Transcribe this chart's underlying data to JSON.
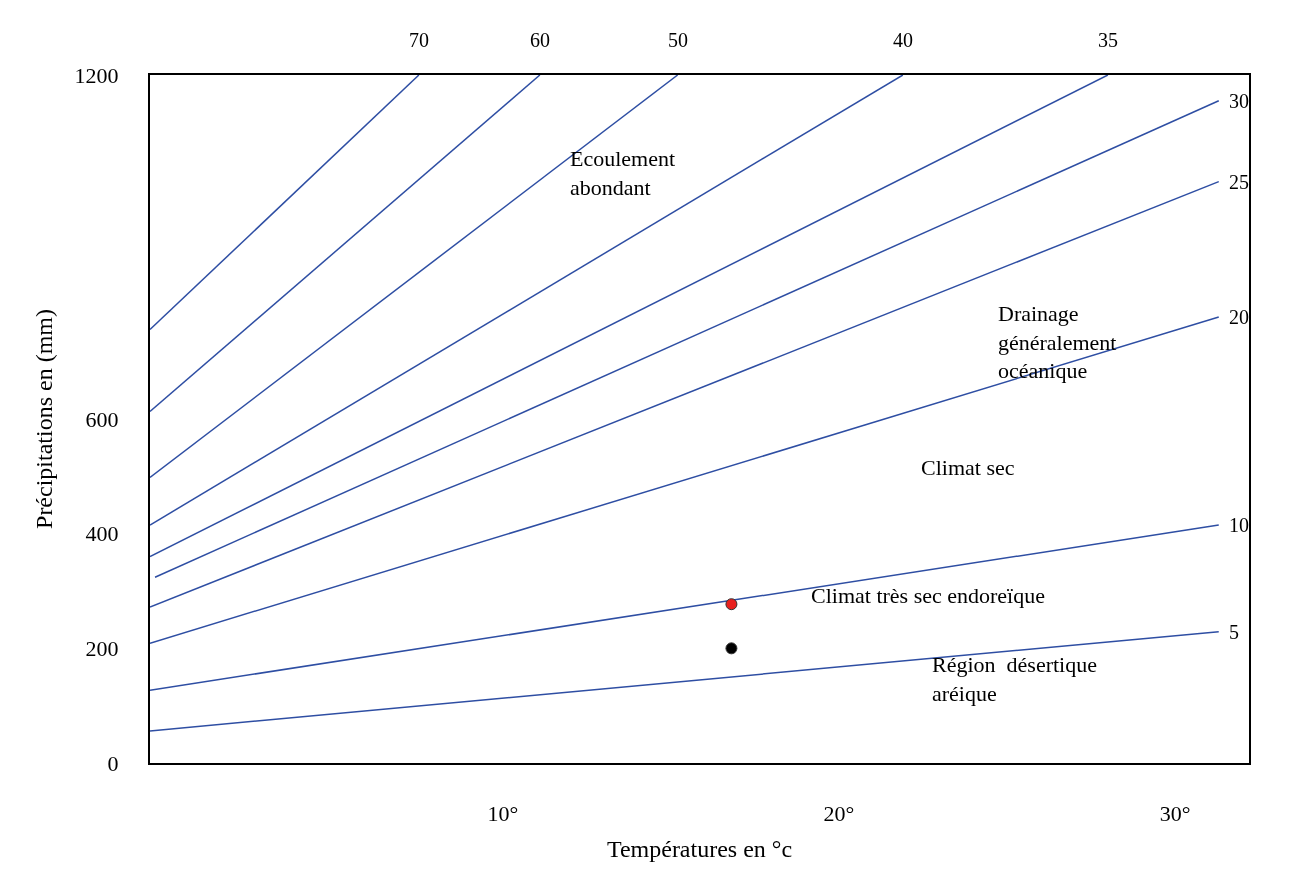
{
  "chart_data": {
    "type": "line",
    "xlabel": "Températures en °c",
    "ylabel": "Précipitations en (mm)",
    "xlim": [
      -0.5,
      32.2
    ],
    "ylim": [
      0,
      1200
    ],
    "xticks": [
      {
        "value": 10,
        "label": "10°"
      },
      {
        "value": 20,
        "label": "20°"
      },
      {
        "value": 30,
        "label": "30°"
      }
    ],
    "yticks": [
      0,
      200,
      400,
      600,
      1200
    ],
    "grid": false,
    "legend": false,
    "marker": "none",
    "line_style": "solid",
    "series": [
      {
        "name": "70",
        "color": "#2e4ea3",
        "x": [
          -0.5,
          7.5
        ],
        "values": [
          756,
          1200
        ]
      },
      {
        "name": "60",
        "color": "#2e4ea3",
        "x": [
          -0.5,
          11.1
        ],
        "values": [
          613,
          1200
        ]
      },
      {
        "name": "50",
        "color": "#2e4ea3",
        "x": [
          -0.5,
          15.2
        ],
        "values": [
          498,
          1200
        ]
      },
      {
        "name": "40",
        "color": "#2e4ea3",
        "x": [
          -0.5,
          21.9
        ],
        "values": [
          415,
          1200
        ]
      },
      {
        "name": "35",
        "color": "#2e4ea3",
        "x": [
          -0.5,
          28.0
        ],
        "values": [
          360,
          1200
        ]
      },
      {
        "name": "30",
        "color": "#2e4ea3",
        "x": [
          -0.35,
          31.3
        ],
        "values": [
          324,
          1155
        ]
      },
      {
        "name": "25",
        "color": "#2e4ea3",
        "x": [
          -0.5,
          31.3
        ],
        "values": [
          272,
          1014
        ]
      },
      {
        "name": "20",
        "color": "#2e4ea3",
        "x": [
          -0.5,
          31.3
        ],
        "values": [
          209,
          778
        ]
      },
      {
        "name": "10",
        "color": "#2e4ea3",
        "x": [
          -0.5,
          31.3
        ],
        "values": [
          127,
          415
        ]
      },
      {
        "name": "5",
        "color": "#2e4ea3",
        "x": [
          -0.5,
          31.3
        ],
        "values": [
          56,
          229
        ]
      },
      {
        "type": "scatter",
        "marker": "circle",
        "color": "#e8211f",
        "x": [
          16.8
        ],
        "values": [
          277
        ]
      },
      {
        "type": "scatter",
        "marker": "circle",
        "color": "#000000",
        "x": [
          16.8
        ],
        "values": [
          200
        ]
      }
    ],
    "annotations": [
      "Ecoulement\nabondant",
      "Drainage\ngénéralement\nocéanique",
      "Climat sec",
      "Climat très sec endoreïque",
      "Région  désertique\naréique"
    ]
  }
}
